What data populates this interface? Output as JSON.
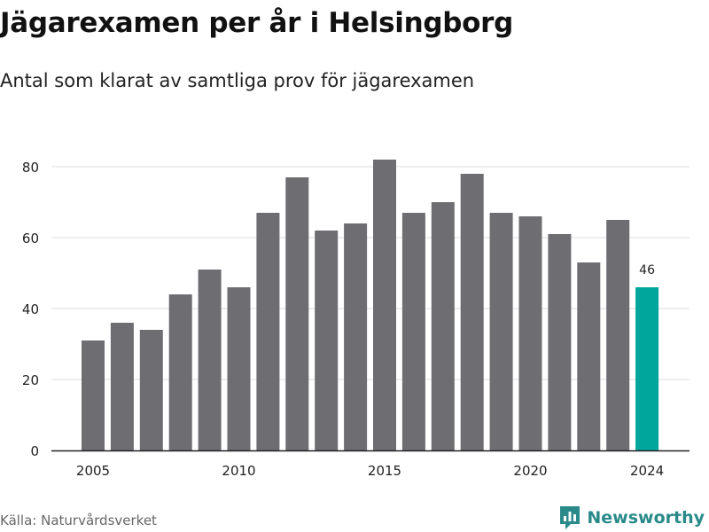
{
  "header": {
    "title": "Jägarexamen per år i Helsingborg",
    "subtitle": "Antal som klarat av samtliga prov för jägarexamen"
  },
  "footer": {
    "source": "Källa: Naturvårdsverket",
    "brand": "Newsworthy",
    "brand_icon": "newsworthy-chart-logo-icon"
  },
  "colors": {
    "bar": "#6e6d72",
    "highlight": "#00a59b",
    "grid": "#dddddd",
    "axis": "#222222",
    "brand": "#2a8a8a"
  },
  "chart_data": {
    "type": "bar",
    "x": [
      2005,
      2006,
      2007,
      2008,
      2009,
      2010,
      2011,
      2012,
      2013,
      2014,
      2015,
      2016,
      2017,
      2018,
      2019,
      2020,
      2021,
      2022,
      2023,
      2024
    ],
    "values": [
      31,
      36,
      34,
      44,
      51,
      46,
      67,
      77,
      62,
      64,
      82,
      67,
      70,
      78,
      67,
      66,
      61,
      53,
      65,
      46
    ],
    "ylim": [
      0,
      85
    ],
    "yticks": [
      0,
      20,
      40,
      60,
      80
    ],
    "xticks": [
      2005,
      2010,
      2015,
      2020,
      2024
    ],
    "highlight_x": 2024,
    "data_labels": [
      {
        "x": 2024,
        "label": "46"
      }
    ],
    "grid": true,
    "xlabel": "",
    "ylabel": ""
  }
}
